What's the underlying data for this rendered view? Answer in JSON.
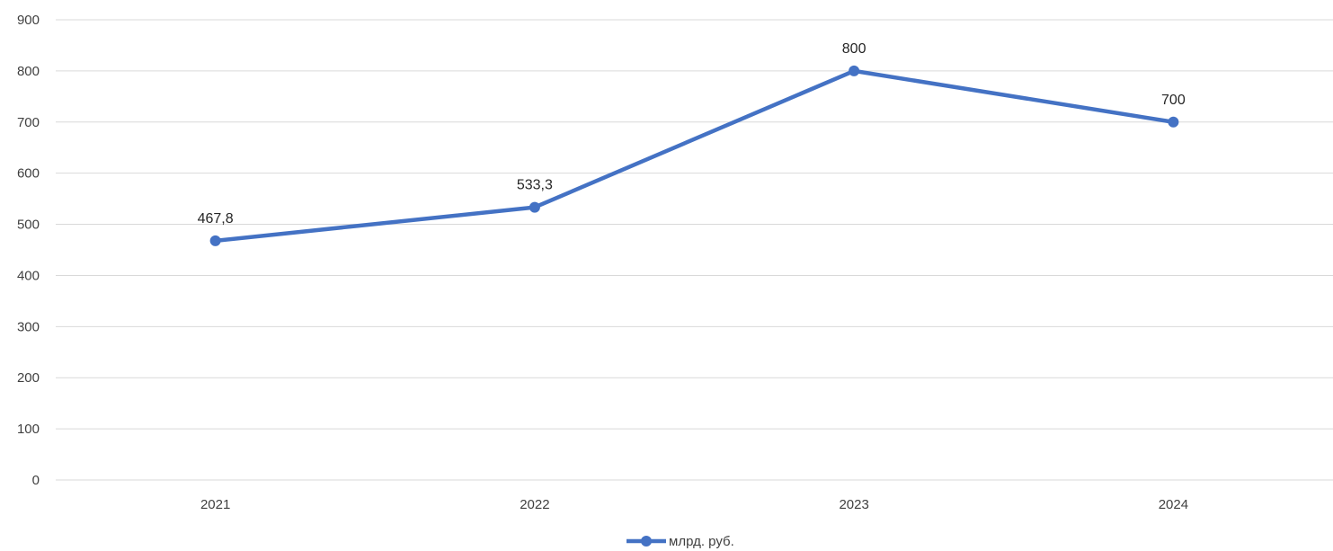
{
  "chart_data": {
    "type": "line",
    "categories": [
      "2021",
      "2022",
      "2023",
      "2024"
    ],
    "series": [
      {
        "name": "млрд. руб.",
        "values": [
          467.8,
          533.3,
          800,
          700
        ],
        "labels": [
          "467,8",
          "533,3",
          "800",
          "700"
        ],
        "color": "#4472C4"
      }
    ],
    "ylim": [
      0,
      900
    ],
    "yticks": [
      0,
      100,
      200,
      300,
      400,
      500,
      600,
      700,
      800,
      900
    ],
    "grid": true,
    "legend_position": "bottom",
    "title": "",
    "xlabel": "",
    "ylabel": ""
  }
}
